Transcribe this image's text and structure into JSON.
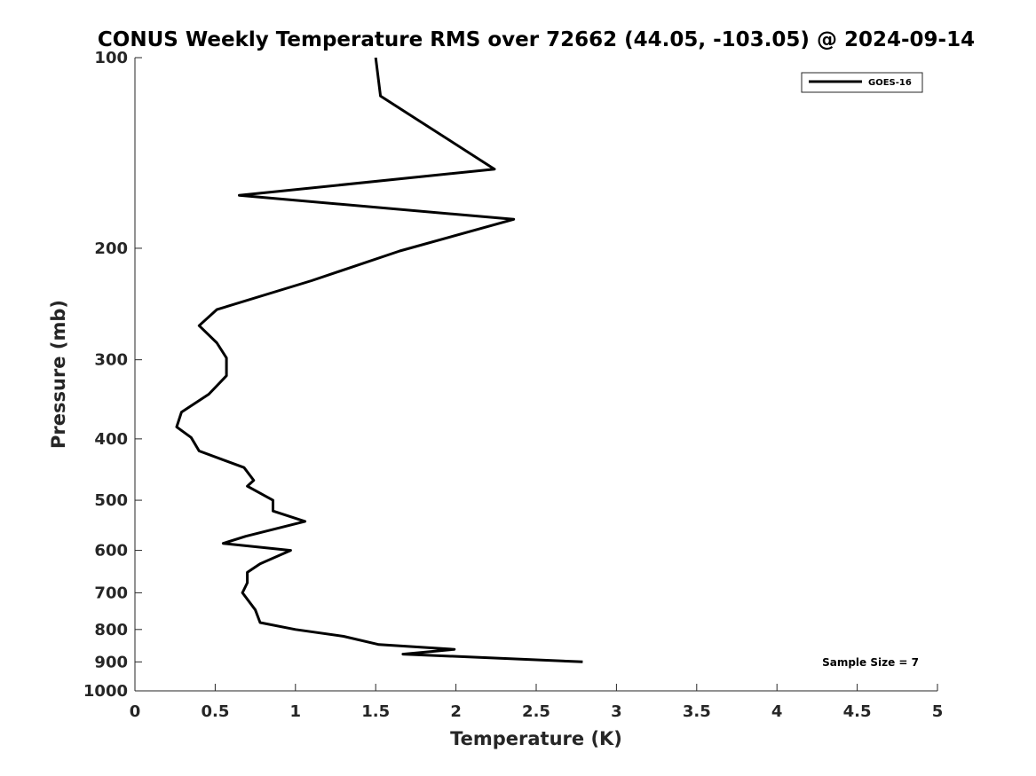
{
  "chart_data": {
    "type": "line",
    "title": "CONUS Weekly Temperature RMS over 72662 (44.05, -103.05) @ 2024-09-14",
    "xlabel": "Temperature (K)",
    "ylabel": "Pressure (mb)",
    "xlim": [
      0,
      5
    ],
    "ylim": [
      100,
      1000
    ],
    "y_scale": "log",
    "y_direction": "reversed",
    "x_ticks": [
      "0",
      "0.5",
      "1",
      "1.5",
      "2",
      "2.5",
      "3",
      "3.5",
      "4",
      "4.5",
      "5"
    ],
    "y_ticks": [
      "100",
      "200",
      "300",
      "400",
      "500",
      "600",
      "700",
      "800",
      "900",
      "1000"
    ],
    "grid": false,
    "legend_position": "top-right",
    "series": [
      {
        "name": "GOES-16",
        "color": "#000000",
        "x": [
          1.5,
          1.53,
          2.24,
          0.65,
          2.36,
          1.65,
          1.1,
          0.51,
          0.4,
          0.51,
          0.57,
          0.57,
          0.46,
          0.29,
          0.26,
          0.35,
          0.4,
          0.68,
          0.74,
          0.7,
          0.86,
          0.86,
          1.06,
          0.69,
          0.55,
          0.97,
          0.78,
          0.7,
          0.7,
          0.67,
          0.75,
          0.78,
          1.0,
          1.3,
          1.52,
          1.99,
          1.67,
          2.79
        ],
        "y": [
          100,
          115,
          150,
          165,
          180,
          202,
          225,
          250,
          265,
          282,
          298,
          318,
          340,
          363,
          383,
          398,
          418,
          444,
          465,
          475,
          500,
          520,
          540,
          570,
          585,
          600,
          630,
          650,
          675,
          700,
          745,
          780,
          800,
          820,
          845,
          860,
          875,
          900
        ]
      }
    ],
    "annotations": [
      {
        "text": "Sample Size = 7",
        "position": "bottom-right"
      }
    ]
  }
}
